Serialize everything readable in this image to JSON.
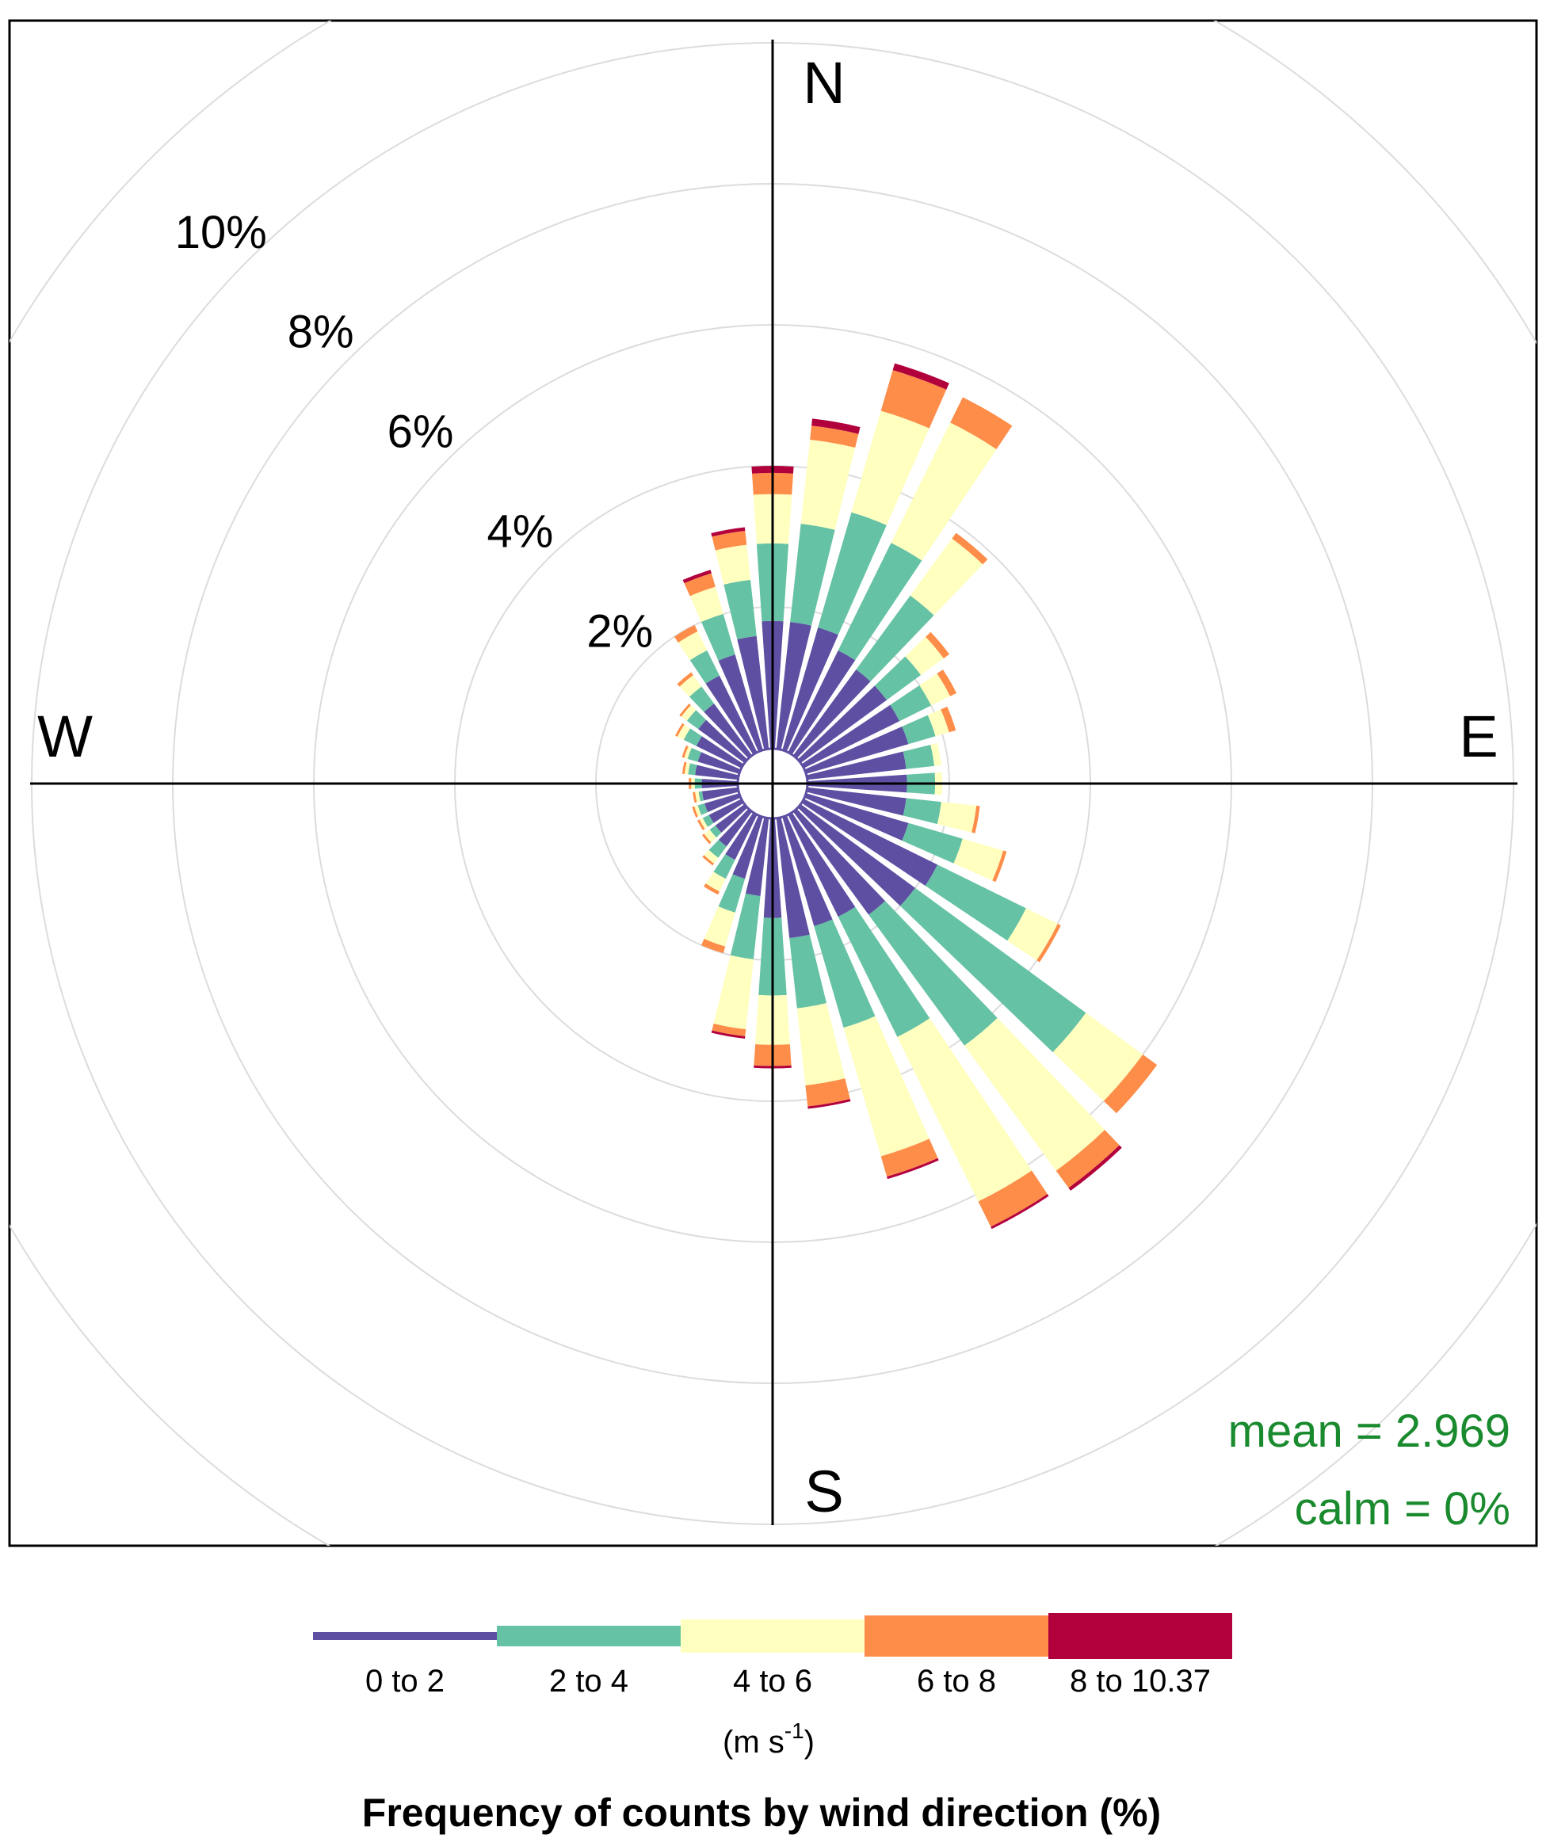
{
  "chart_data": {
    "type": "wind-rose",
    "title": "Frequency of counts by wind direction (%)",
    "compass": {
      "north": "N",
      "east": "E",
      "south": "S",
      "west": "W"
    },
    "radial_axis": {
      "unit": "%",
      "range": [
        0,
        10
      ],
      "ticks": [
        2,
        4,
        6,
        8,
        10
      ],
      "tick_labels": [
        "2%",
        "4%",
        "6%",
        "8%",
        "10%"
      ]
    },
    "stats": {
      "mean_label": "mean = 2.969",
      "calm_label": "calm = 0%"
    },
    "legend": {
      "placement": "bottom",
      "unit_text": "(m s",
      "unit_exponent": "-1",
      "unit_close": ")",
      "bins": [
        {
          "label": "0 to 2",
          "color": "#5e4fa2"
        },
        {
          "label": "2 to 4",
          "color": "#66c2a5"
        },
        {
          "label": "4 to 6",
          "color": "#ffffbf"
        },
        {
          "label": "6 to 8",
          "color": "#fd8d49"
        },
        {
          "label": "8 to 10.37",
          "color": "#b2003c"
        }
      ]
    },
    "sector_width_deg": 10,
    "directions_deg": [
      0,
      10,
      20,
      30,
      40,
      50,
      60,
      70,
      80,
      90,
      100,
      110,
      120,
      130,
      140,
      150,
      160,
      170,
      180,
      190,
      200,
      210,
      220,
      230,
      240,
      250,
      260,
      270,
      280,
      290,
      300,
      310,
      320,
      330,
      340,
      350
    ],
    "cumulative_percent": [
      [
        1.8,
        2.9,
        3.6,
        3.9,
        4.0
      ],
      [
        1.8,
        3.2,
        4.4,
        4.6,
        4.7
      ],
      [
        1.8,
        3.5,
        5.0,
        5.6,
        5.7
      ],
      [
        1.6,
        3.3,
        5.2,
        5.6,
        5.6
      ],
      [
        1.5,
        2.8,
        3.8,
        3.9,
        3.9
      ],
      [
        1.5,
        2.1,
        2.5,
        2.6,
        2.6
      ],
      [
        1.5,
        2.0,
        2.3,
        2.4,
        2.4
      ],
      [
        1.5,
        1.9,
        2.1,
        2.2,
        2.2
      ],
      [
        1.4,
        1.8,
        1.9,
        1.9,
        1.9
      ],
      [
        1.4,
        1.8,
        1.9,
        1.9,
        1.9
      ],
      [
        1.4,
        1.9,
        2.4,
        2.45,
        2.45
      ],
      [
        1.5,
        2.3,
        2.9,
        2.95,
        2.95
      ],
      [
        2.1,
        3.5,
        4.0,
        4.05,
        4.05
      ],
      [
        2.0,
        5.0,
        6.0,
        6.25,
        6.25
      ],
      [
        1.8,
        4.1,
        6.3,
        6.6,
        6.65
      ],
      [
        1.6,
        3.5,
        6.1,
        6.5,
        6.52
      ],
      [
        1.6,
        3.1,
        5.0,
        5.3,
        5.33
      ],
      [
        1.7,
        2.7,
        3.8,
        4.1,
        4.12
      ],
      [
        1.4,
        2.5,
        3.2,
        3.5,
        3.52
      ],
      [
        1.1,
        2.0,
        3.0,
        3.1,
        3.12
      ],
      [
        0.9,
        1.4,
        1.9,
        2.0,
        2.0
      ],
      [
        0.7,
        1.0,
        1.2,
        1.25,
        1.25
      ],
      [
        0.6,
        0.8,
        0.9,
        0.92,
        0.92
      ],
      [
        0.5,
        0.6,
        0.7,
        0.72,
        0.72
      ],
      [
        0.5,
        0.6,
        0.65,
        0.67,
        0.67
      ],
      [
        0.5,
        0.6,
        0.65,
        0.67,
        0.67
      ],
      [
        0.5,
        0.55,
        0.6,
        0.62,
        0.62
      ],
      [
        0.5,
        0.6,
        0.65,
        0.67,
        0.67
      ],
      [
        0.6,
        0.7,
        0.75,
        0.77,
        0.77
      ],
      [
        0.6,
        0.75,
        0.8,
        0.82,
        0.82
      ],
      [
        0.7,
        0.9,
        1.0,
        1.02,
        1.02
      ],
      [
        0.8,
        1.0,
        1.1,
        1.12,
        1.12
      ],
      [
        0.9,
        1.2,
        1.4,
        1.45,
        1.45
      ],
      [
        1.2,
        1.6,
        1.9,
        2.0,
        2.0
      ],
      [
        1.4,
        2.0,
        2.4,
        2.6,
        2.65
      ],
      [
        1.6,
        2.4,
        2.9,
        3.1,
        3.15
      ]
    ]
  }
}
